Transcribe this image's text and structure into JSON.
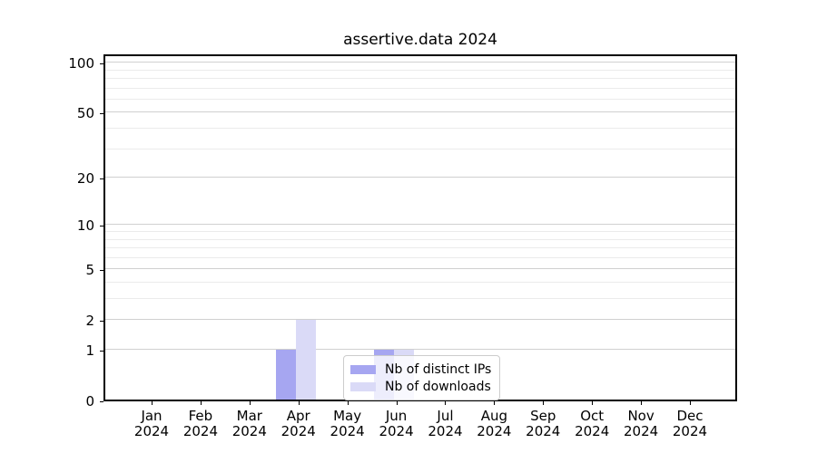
{
  "figure": {
    "title": "assertive.data 2024"
  },
  "chart_data": {
    "type": "bar",
    "title": "assertive.data 2024",
    "x_year": "2024",
    "categories": [
      "Jan",
      "Feb",
      "Mar",
      "Apr",
      "May",
      "Jun",
      "Jul",
      "Aug",
      "Sep",
      "Oct",
      "Nov",
      "Dec"
    ],
    "series": [
      {
        "name": "Nb of distinct IPs",
        "color": "#a6a6f1",
        "values": [
          0,
          0,
          0,
          1,
          0,
          1,
          0,
          0,
          0,
          0,
          0,
          0
        ]
      },
      {
        "name": "Nb of downloads",
        "color": "#dadaf7",
        "values": [
          0,
          0,
          0,
          2,
          0,
          1,
          0,
          0,
          0,
          0,
          0,
          0
        ]
      }
    ],
    "xlabel": "",
    "ylabel": "",
    "yscale": "log1p",
    "ylim": [
      0,
      113
    ],
    "y_major_ticks": [
      0,
      1,
      2,
      5,
      10,
      20,
      50,
      100
    ],
    "y_minor_gridlines": [
      3,
      4,
      6,
      7,
      8,
      9,
      30,
      40,
      60,
      70,
      80,
      90
    ],
    "grid": "both",
    "legend_position": "inside-lower-center",
    "legend_entries": [
      "Nb of distinct IPs",
      "Nb of downloads"
    ]
  },
  "colors": {
    "background": "#ffffff",
    "spine": "#000000",
    "grid_major": "#d0d0d0",
    "grid_minor": "#ebebeb",
    "text": "#000000",
    "legend_border": "#cccccc",
    "bar_distinct_ips": "#a6a6f1",
    "bar_downloads": "#dadaf7"
  }
}
